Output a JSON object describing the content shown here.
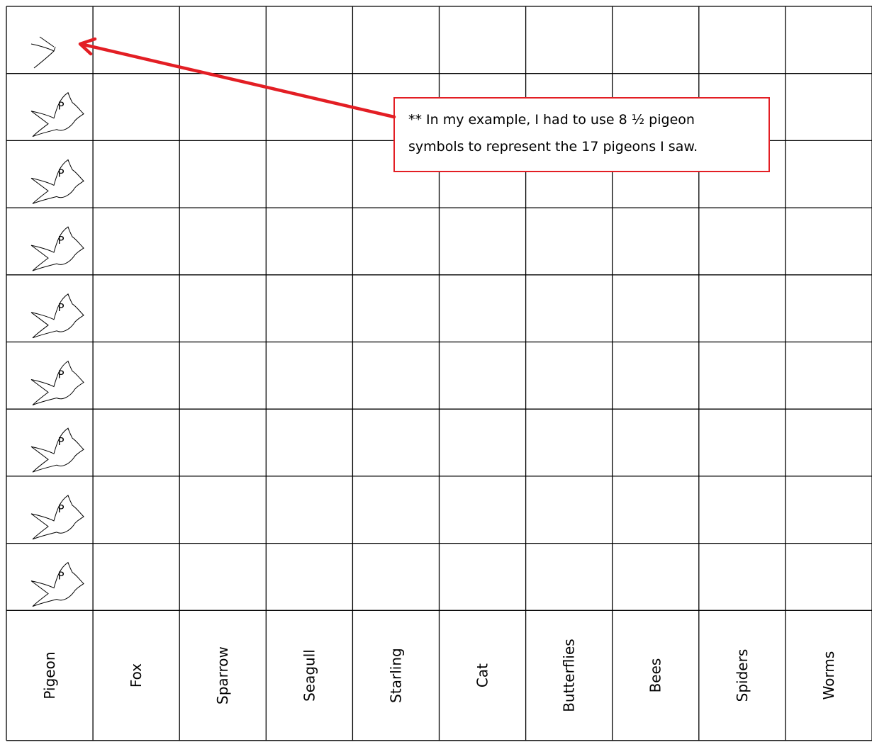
{
  "chart_data": {
    "type": "pictogram",
    "categories": [
      "Pigeon",
      "Fox",
      "Sparrow",
      "Seagull",
      "Starling",
      "Cat",
      "Butterflies",
      "Bees",
      "Spiders",
      "Worms"
    ],
    "rows": 9,
    "values": [
      8.5,
      0,
      0,
      0,
      0,
      0,
      0,
      0,
      0,
      0
    ],
    "symbol": {
      "icon": "pigeon-icon",
      "letter": "P"
    },
    "annotation": {
      "lines": [
        "** In my example, I had to use 8 ½ pigeon",
        "symbols to represent the 17 pigeons I saw."
      ],
      "border_color": "#e31e24",
      "arrow_color": "#e31e24"
    }
  }
}
